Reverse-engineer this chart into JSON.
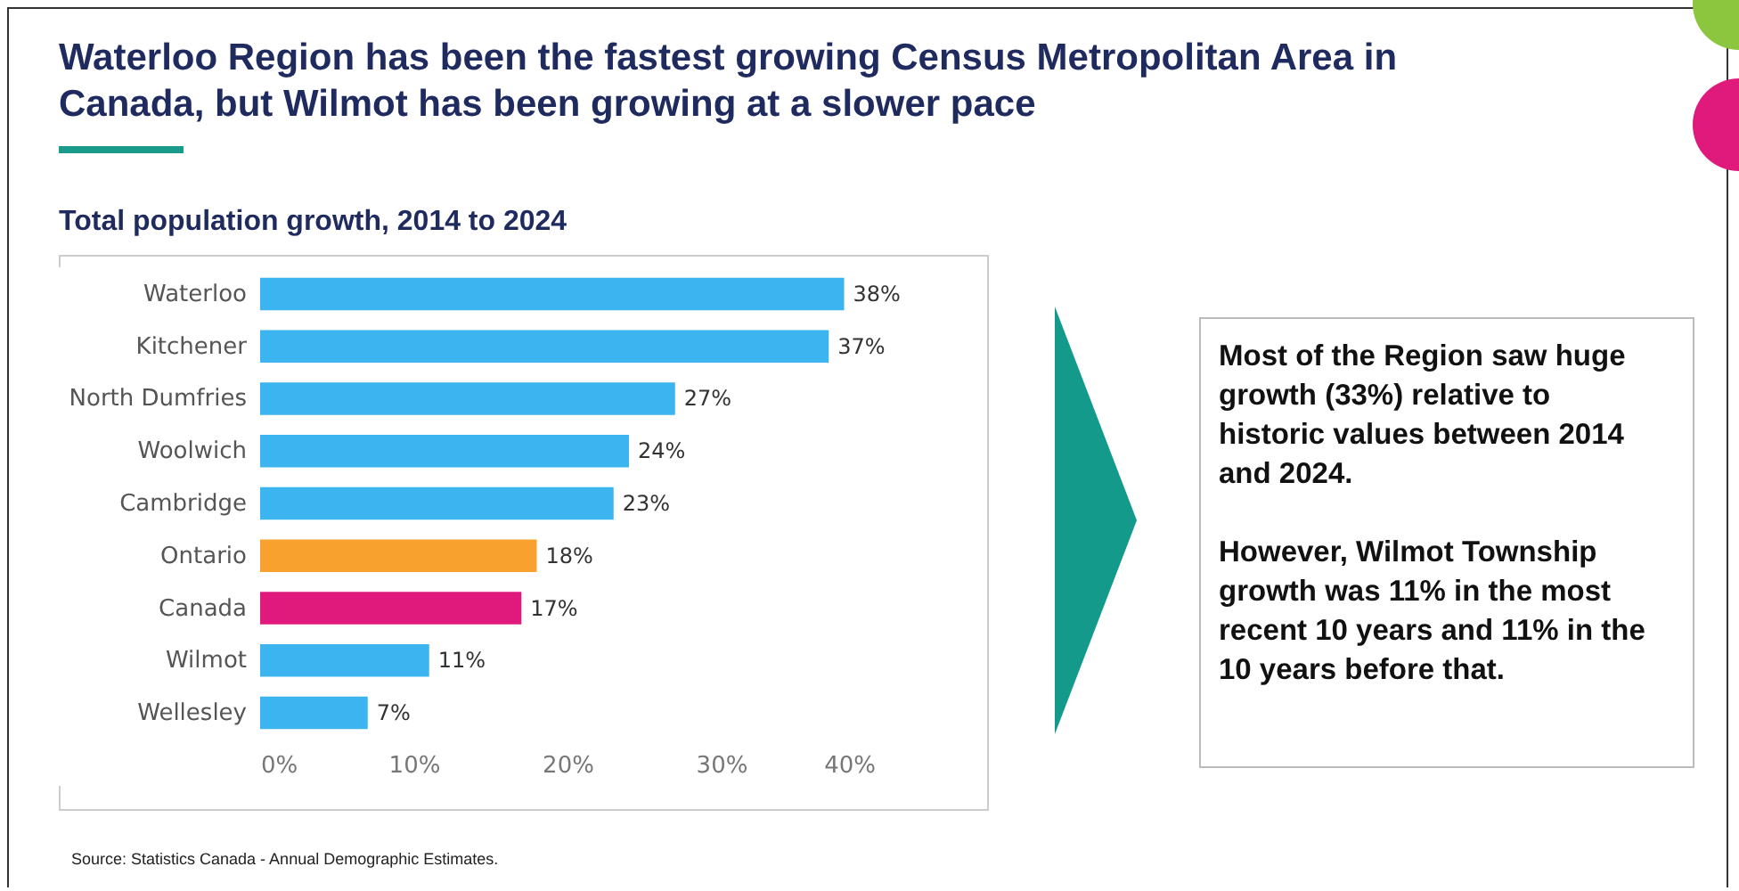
{
  "chart_data": {
    "type": "bar",
    "orientation": "horizontal",
    "title": "Waterloo Region has been the fastest growing Census Metropolitan Area in Canada, but Wilmot has been growing at a slower pace",
    "subtitle": "Total population growth, 2014 to 2024",
    "categories": [
      "Waterloo",
      "Kitchener",
      "North Dumfries",
      "Woolwich",
      "Cambridge",
      "Ontario",
      "Canada",
      "Wilmot",
      "Wellesley"
    ],
    "values": [
      38,
      37,
      27,
      24,
      23,
      18,
      17,
      11,
      7
    ],
    "colors": [
      "#3bb4ef",
      "#3bb4ef",
      "#3bb4ef",
      "#3bb4ef",
      "#3bb4ef",
      "#f8a12e",
      "#e01a7c",
      "#3bb4ef",
      "#3bb4ef"
    ],
    "value_labels": [
      "38%",
      "37%",
      "27%",
      "24%",
      "23%",
      "18%",
      "17%",
      "11%",
      "7%"
    ],
    "xlim": [
      0,
      40
    ],
    "xticks": [
      {
        "value": 0,
        "label": "0%"
      },
      {
        "value": 10,
        "label": "10%"
      },
      {
        "value": 20,
        "label": "20%"
      },
      {
        "value": 30,
        "label": "30%"
      },
      {
        "value": 40,
        "label": "40%"
      }
    ],
    "annotations": [
      "Most of the Region saw huge growth (33%) relative to historic values between 2014 and 2024.",
      "However, Wilmot Township growth was 11% in the most recent 10 years and 11% in the 10 years before that.",
      "Source: Statistics Canada - Annual Demographic Estimates."
    ]
  }
}
